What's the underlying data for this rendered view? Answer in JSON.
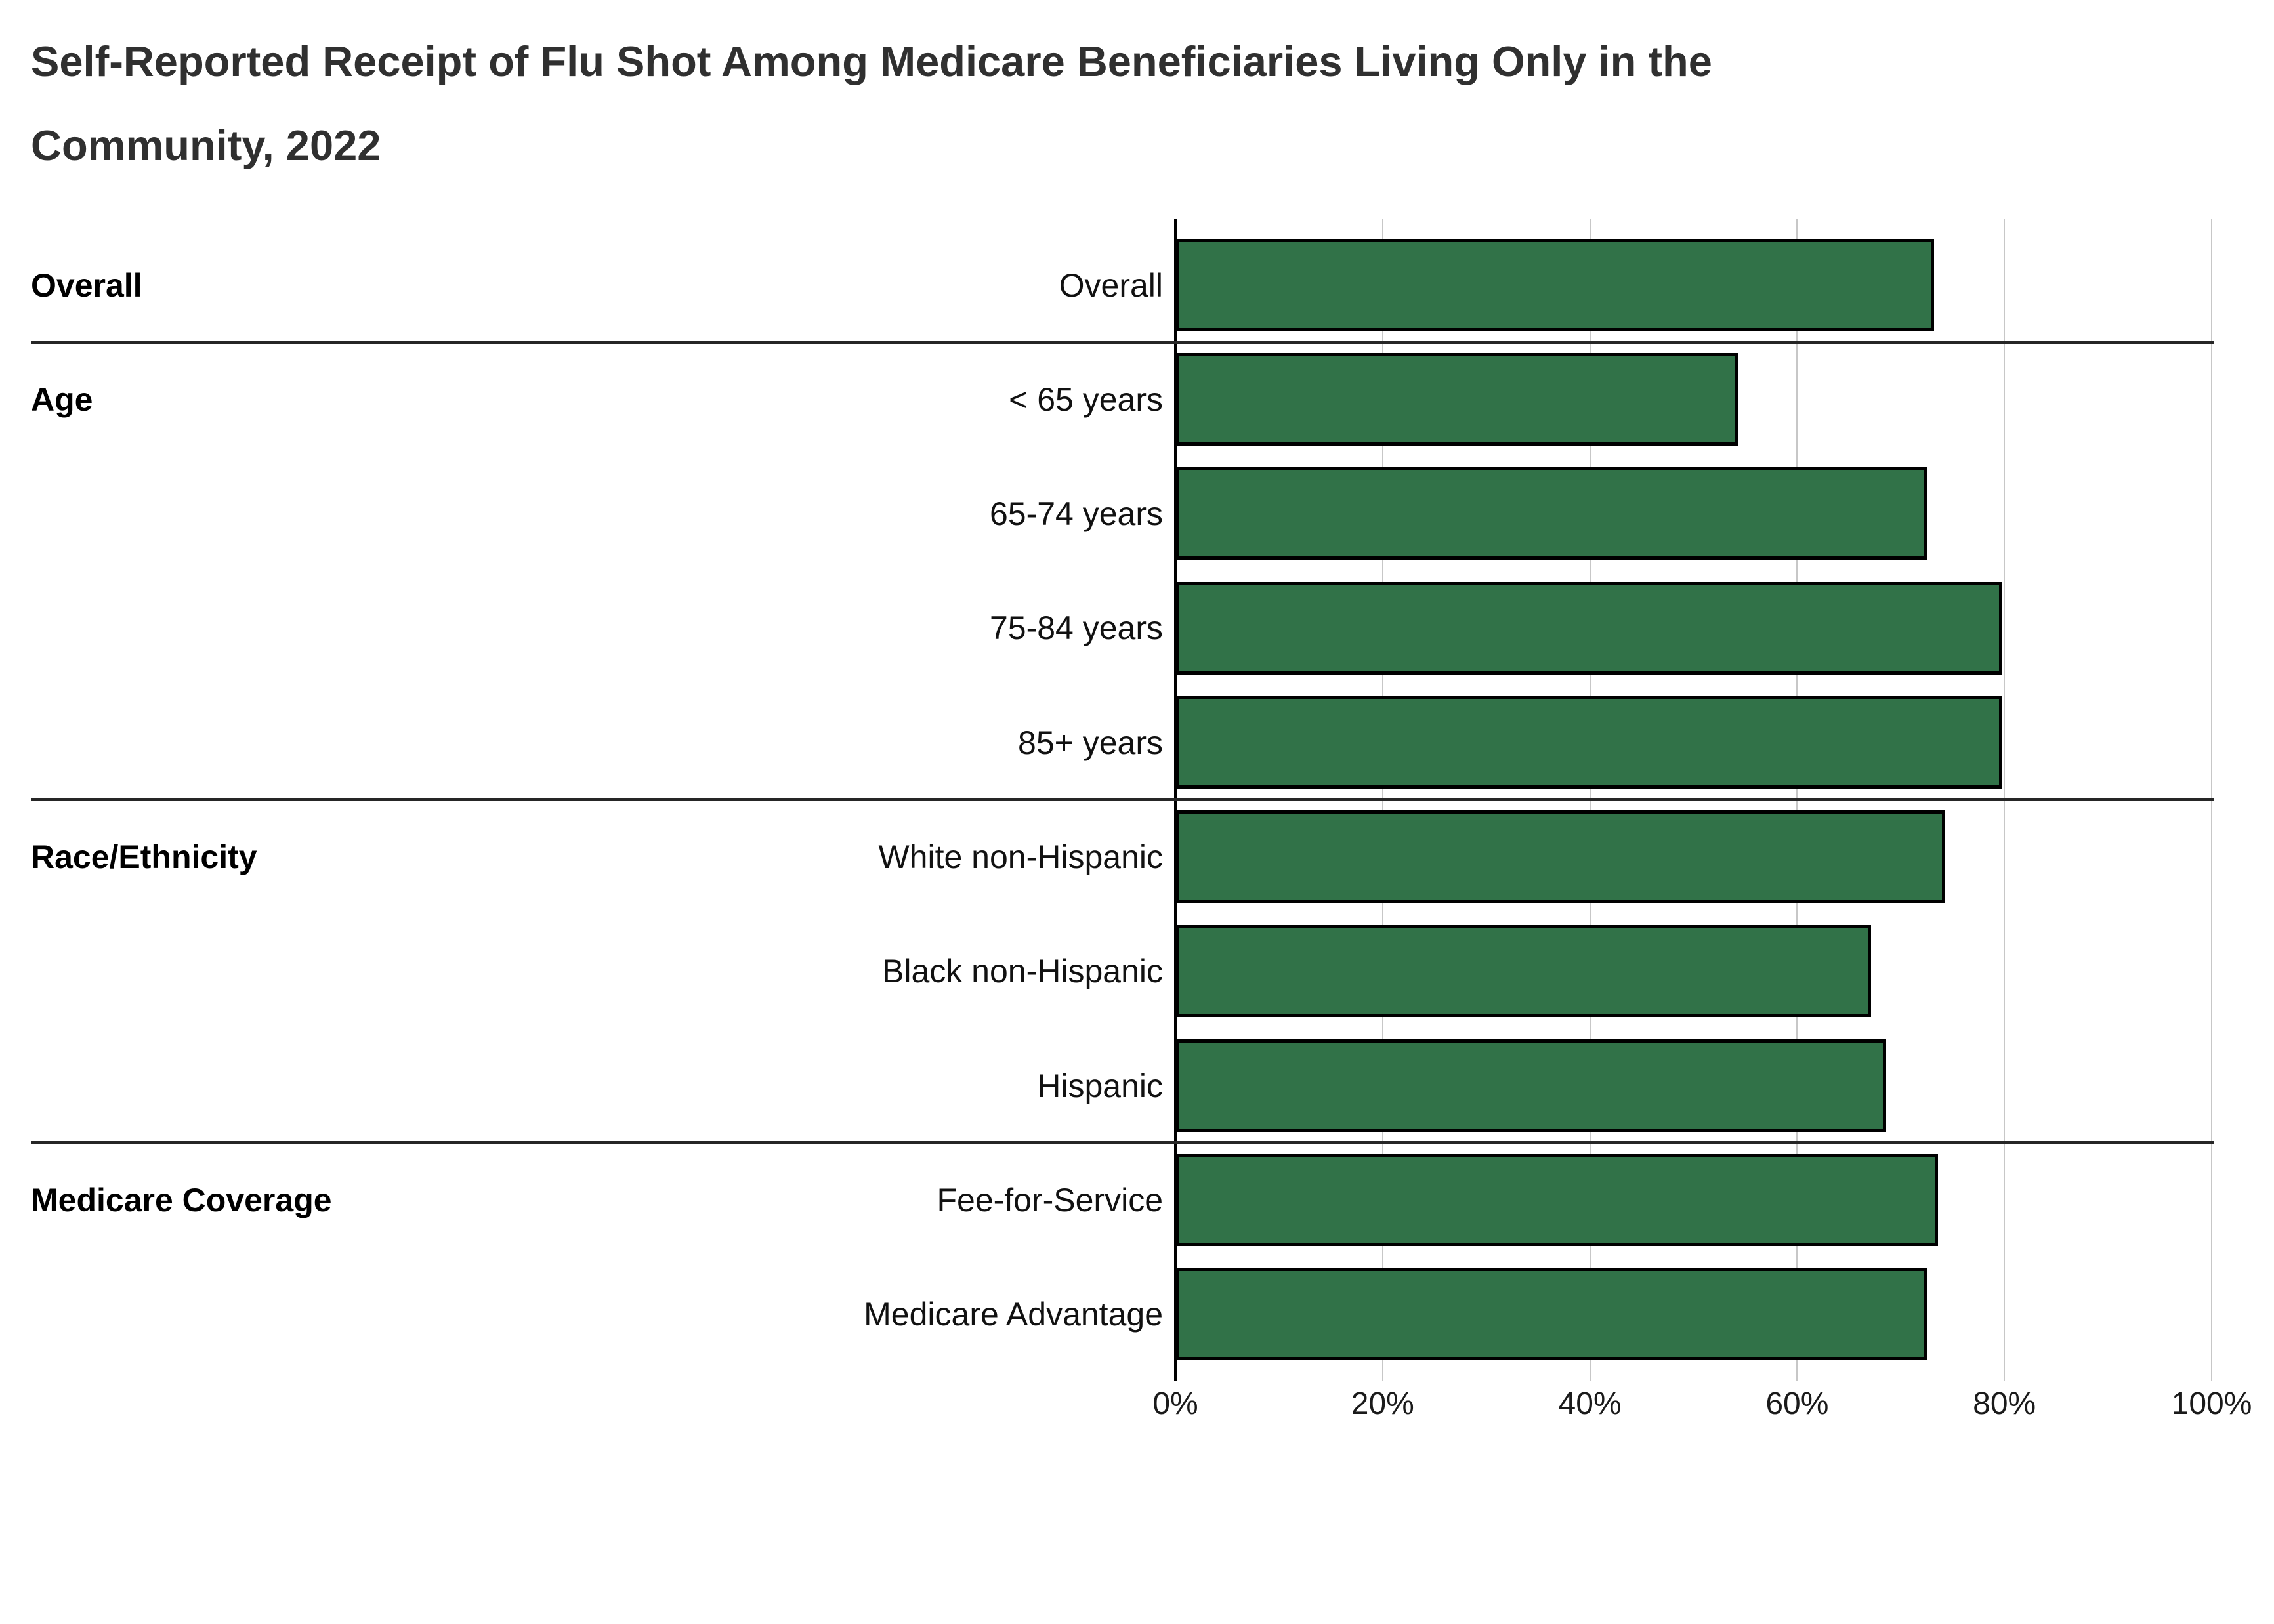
{
  "title": {
    "line1": "Self-Reported Receipt of Flu Shot Among Medicare Beneficiaries Living Only in the",
    "line2": "Community, 2022"
  },
  "chart_data": {
    "type": "bar",
    "orientation": "horizontal",
    "title": "Self-Reported Receipt of Flu Shot Among Medicare Beneficiaries Living Only in the Community, 2022",
    "xlabel": "",
    "ylabel": "",
    "unit": "percent",
    "xlim": [
      0,
      100
    ],
    "x_ticks": [
      "0%",
      "20%",
      "40%",
      "60%",
      "80%",
      "100%"
    ],
    "grid": true,
    "legend": false,
    "bar_color": "#317248",
    "bar_border_color": "#000000",
    "groups": [
      {
        "label": "Overall",
        "rows": [
          {
            "category": "Overall",
            "value": 73.2
          }
        ]
      },
      {
        "label": "Age",
        "rows": [
          {
            "category": "< 65 years",
            "value": 54.3
          },
          {
            "category": "65-74 years",
            "value": 72.5
          },
          {
            "category": "75-84 years",
            "value": 79.8
          },
          {
            "category": "85+ years",
            "value": 79.8
          }
        ]
      },
      {
        "label": "Race/Ethnicity",
        "rows": [
          {
            "category": "White non-Hispanic",
            "value": 74.3
          },
          {
            "category": "Black non-Hispanic",
            "value": 67.1
          },
          {
            "category": "Hispanic",
            "value": 68.6
          }
        ]
      },
      {
        "label": "Medicare Coverage",
        "rows": [
          {
            "category": "Fee-for-Service",
            "value": 73.6
          },
          {
            "category": "Medicare Advantage",
            "value": 72.5
          }
        ]
      }
    ]
  }
}
